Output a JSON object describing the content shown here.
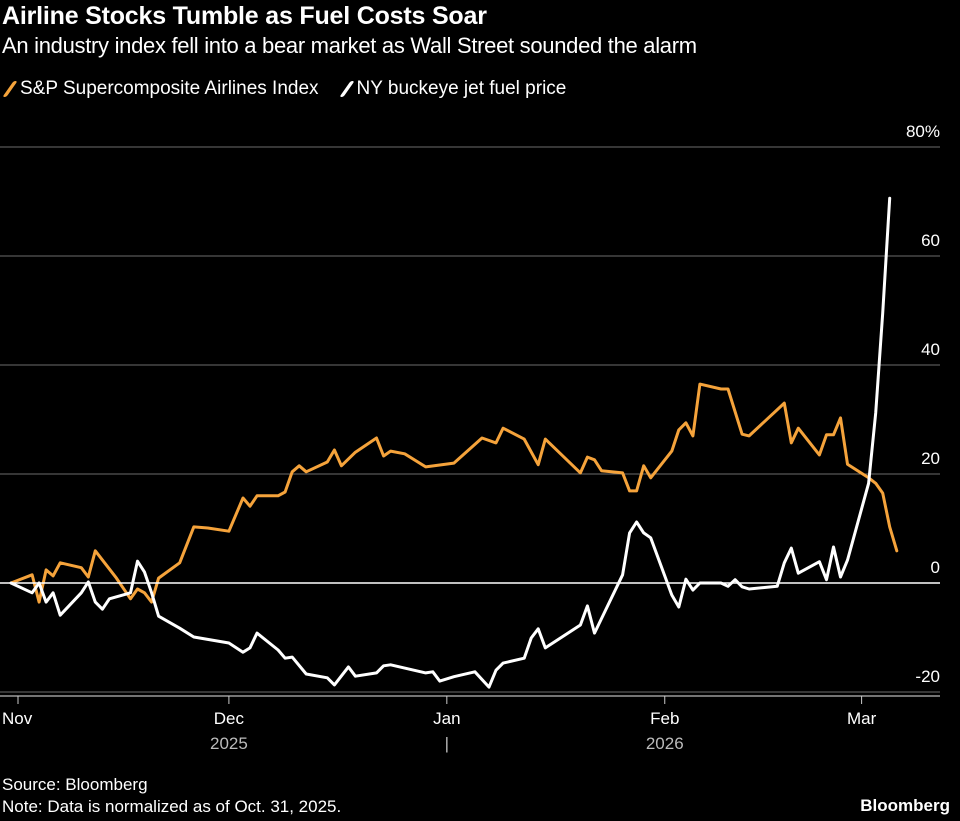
{
  "chart_data": {
    "type": "line",
    "title": "Airline Stocks Tumble as Fuel Costs Soar",
    "subtitle": "An industry index fell into a bear market as Wall Street sounded the alarm",
    "ylabel": "",
    "xlabel": "",
    "ylim": [
      -20,
      80
    ],
    "yticks": [
      80,
      60,
      40,
      20,
      0,
      -20
    ],
    "ytick_labels": [
      "80%",
      "60",
      "40",
      "20",
      "0",
      "-20"
    ],
    "xticks": [
      {
        "date": "2025-11-01",
        "label": "Nov"
      },
      {
        "date": "2025-12-01",
        "label": "Dec"
      },
      {
        "date": "2026-01-01",
        "label": "Jan"
      },
      {
        "date": "2026-02-01",
        "label": "Feb"
      },
      {
        "date": "2026-03-01",
        "label": "Mar"
      }
    ],
    "year_labels": [
      {
        "date": "2025-12-01",
        "label": "2025"
      },
      {
        "date": "2026-01-01",
        "label": "|"
      },
      {
        "date": "2026-02-01",
        "label": "2026"
      }
    ],
    "grid": true,
    "legend_position": "top-left",
    "series": [
      {
        "name": "S&P Supercomposite Airlines Index",
        "color": "#f5a33b",
        "points": [
          [
            "2025-10-31",
            0
          ],
          [
            "2025-11-03",
            1.5
          ],
          [
            "2025-11-04",
            -3.5
          ],
          [
            "2025-11-05",
            2.4
          ],
          [
            "2025-11-06",
            1.3
          ],
          [
            "2025-11-07",
            3.7
          ],
          [
            "2025-11-10",
            2.8
          ],
          [
            "2025-11-11",
            1.1
          ],
          [
            "2025-11-12",
            5.9
          ],
          [
            "2025-11-15",
            0.9
          ],
          [
            "2025-11-17",
            -2.9
          ],
          [
            "2025-11-18",
            -1.1
          ],
          [
            "2025-11-19",
            -1.8
          ],
          [
            "2025-11-20",
            -3.5
          ],
          [
            "2025-11-21",
            0.9
          ],
          [
            "2025-11-24",
            3.7
          ],
          [
            "2025-11-26",
            10.3
          ],
          [
            "2025-11-28",
            10.1
          ],
          [
            "2025-12-01",
            9.5
          ],
          [
            "2025-12-03",
            15.6
          ],
          [
            "2025-12-04",
            14.1
          ],
          [
            "2025-12-05",
            16.0
          ],
          [
            "2025-12-08",
            16.0
          ],
          [
            "2025-12-09",
            16.7
          ],
          [
            "2025-12-10",
            20.4
          ],
          [
            "2025-12-11",
            21.5
          ],
          [
            "2025-12-12",
            20.4
          ],
          [
            "2025-12-15",
            22.2
          ],
          [
            "2025-12-16",
            24.4
          ],
          [
            "2025-12-17",
            21.5
          ],
          [
            "2025-12-19",
            24.0
          ],
          [
            "2025-12-22",
            26.6
          ],
          [
            "2025-12-23",
            23.3
          ],
          [
            "2025-12-24",
            24.2
          ],
          [
            "2025-12-26",
            23.7
          ],
          [
            "2025-12-29",
            21.3
          ],
          [
            "2026-01-02",
            22.0
          ],
          [
            "2026-01-06",
            26.6
          ],
          [
            "2026-01-08",
            25.7
          ],
          [
            "2026-01-09",
            28.4
          ],
          [
            "2026-01-12",
            26.4
          ],
          [
            "2026-01-14",
            21.7
          ],
          [
            "2026-01-15",
            26.4
          ],
          [
            "2026-01-20",
            20.2
          ],
          [
            "2026-01-21",
            23.1
          ],
          [
            "2026-01-22",
            22.6
          ],
          [
            "2026-01-23",
            20.6
          ],
          [
            "2026-01-26",
            20.2
          ],
          [
            "2026-01-27",
            16.9
          ],
          [
            "2026-01-28",
            16.9
          ],
          [
            "2026-01-29",
            21.5
          ],
          [
            "2026-01-30",
            19.3
          ],
          [
            "2026-02-02",
            24.2
          ],
          [
            "2026-02-03",
            28.1
          ],
          [
            "2026-02-04",
            29.4
          ],
          [
            "2026-02-05",
            27.0
          ],
          [
            "2026-02-06",
            36.5
          ],
          [
            "2026-02-09",
            35.6
          ],
          [
            "2026-02-10",
            35.6
          ],
          [
            "2026-02-12",
            27.3
          ],
          [
            "2026-02-13",
            27.0
          ],
          [
            "2026-02-18",
            33.0
          ],
          [
            "2026-02-19",
            25.7
          ],
          [
            "2026-02-20",
            28.4
          ],
          [
            "2026-02-23",
            23.5
          ],
          [
            "2026-02-24",
            27.2
          ],
          [
            "2026-02-25",
            27.2
          ],
          [
            "2026-02-26",
            30.3
          ],
          [
            "2026-02-27",
            21.8
          ],
          [
            "2026-03-02",
            19.3
          ],
          [
            "2026-03-03",
            18.3
          ],
          [
            "2026-03-04",
            16.5
          ],
          [
            "2026-03-05",
            10.3
          ],
          [
            "2026-03-06",
            5.9
          ]
        ]
      },
      {
        "name": "NY buckeye jet fuel price",
        "color": "#ffffff",
        "points": [
          [
            "2025-10-31",
            0
          ],
          [
            "2025-11-03",
            -1.8
          ],
          [
            "2025-11-04",
            0
          ],
          [
            "2025-11-05",
            -3.5
          ],
          [
            "2025-11-06",
            -1.8
          ],
          [
            "2025-11-07",
            -5.9
          ],
          [
            "2025-11-10",
            -1.8
          ],
          [
            "2025-11-11",
            0.2
          ],
          [
            "2025-11-12",
            -3.5
          ],
          [
            "2025-11-13",
            -4.8
          ],
          [
            "2025-11-14",
            -2.9
          ],
          [
            "2025-11-17",
            -1.8
          ],
          [
            "2025-11-18",
            4.0
          ],
          [
            "2025-11-19",
            2.0
          ],
          [
            "2025-11-20",
            -1.8
          ],
          [
            "2025-11-21",
            -6.1
          ],
          [
            "2025-11-24",
            -8.3
          ],
          [
            "2025-11-26",
            -9.9
          ],
          [
            "2025-12-01",
            -11.0
          ],
          [
            "2025-12-03",
            -12.7
          ],
          [
            "2025-12-04",
            -11.9
          ],
          [
            "2025-12-05",
            -9.2
          ],
          [
            "2025-12-08",
            -12.3
          ],
          [
            "2025-12-09",
            -13.8
          ],
          [
            "2025-12-10",
            -13.6
          ],
          [
            "2025-12-12",
            -16.7
          ],
          [
            "2025-12-15",
            -17.4
          ],
          [
            "2025-12-16",
            -18.7
          ],
          [
            "2025-12-18",
            -15.4
          ],
          [
            "2025-12-19",
            -17.1
          ],
          [
            "2025-12-22",
            -16.5
          ],
          [
            "2025-12-23",
            -15.2
          ],
          [
            "2025-12-24",
            -15.0
          ],
          [
            "2025-12-29",
            -16.5
          ],
          [
            "2025-12-30",
            -16.3
          ],
          [
            "2025-12-31",
            -18.0
          ],
          [
            "2026-01-02",
            -17.2
          ],
          [
            "2026-01-05",
            -16.3
          ],
          [
            "2026-01-07",
            -19.1
          ],
          [
            "2026-01-08",
            -16.0
          ],
          [
            "2026-01-09",
            -14.7
          ],
          [
            "2026-01-12",
            -13.8
          ],
          [
            "2026-01-13",
            -10.1
          ],
          [
            "2026-01-14",
            -8.4
          ],
          [
            "2026-01-15",
            -11.9
          ],
          [
            "2026-01-20",
            -7.7
          ],
          [
            "2026-01-21",
            -4.2
          ],
          [
            "2026-01-22",
            -9.2
          ],
          [
            "2026-01-26",
            1.5
          ],
          [
            "2026-01-27",
            9.2
          ],
          [
            "2026-01-28",
            11.2
          ],
          [
            "2026-01-29",
            9.2
          ],
          [
            "2026-01-30",
            8.3
          ],
          [
            "2026-02-02",
            -2.2
          ],
          [
            "2026-02-03",
            -4.4
          ],
          [
            "2026-02-04",
            0.7
          ],
          [
            "2026-02-05",
            -1.3
          ],
          [
            "2026-02-06",
            0
          ],
          [
            "2026-02-09",
            0
          ],
          [
            "2026-02-10",
            -0.6
          ],
          [
            "2026-02-11",
            0.6
          ],
          [
            "2026-02-12",
            -0.7
          ],
          [
            "2026-02-13",
            -1.1
          ],
          [
            "2026-02-17",
            -0.6
          ],
          [
            "2026-02-18",
            3.7
          ],
          [
            "2026-02-19",
            6.4
          ],
          [
            "2026-02-20",
            1.8
          ],
          [
            "2026-02-23",
            3.9
          ],
          [
            "2026-02-24",
            0.6
          ],
          [
            "2026-02-25",
            6.6
          ],
          [
            "2026-02-26",
            1.1
          ],
          [
            "2026-02-27",
            4.2
          ],
          [
            "2026-03-02",
            18.3
          ],
          [
            "2026-03-03",
            31.2
          ],
          [
            "2026-03-04",
            49.5
          ],
          [
            "2026-03-05",
            70.6
          ]
        ]
      }
    ],
    "source": "Source: Bloomberg",
    "note": "Note: Data is normalized as of Oct. 31, 2025.",
    "logo": "Bloomberg"
  }
}
